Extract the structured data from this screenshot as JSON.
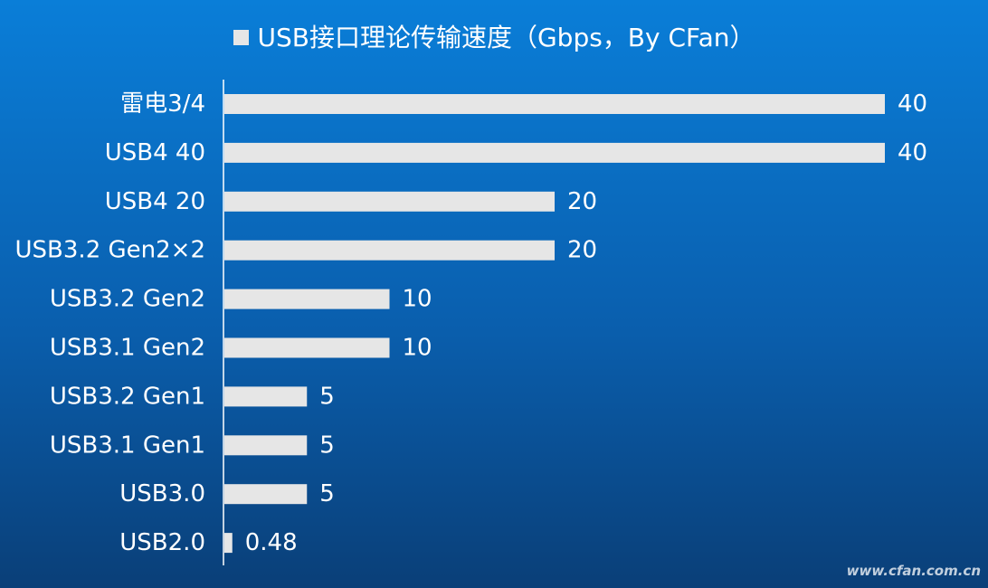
{
  "colors": {
    "bar": "#e6e6e6",
    "axis": "#ffffff",
    "text": "#ffffff"
  },
  "watermark": "www.cfan.com.cn",
  "chart_data": {
    "type": "bar",
    "orientation": "horizontal",
    "title": "",
    "legend": {
      "position": "top",
      "entries": [
        "USB接口理论传输速度（Gbps，By CFan）"
      ]
    },
    "series": [
      {
        "name": "USB接口理论传输速度（Gbps，By CFan）",
        "values": [
          40,
          40,
          20,
          20,
          10,
          10,
          5,
          5,
          5,
          0.48
        ]
      }
    ],
    "categories": [
      "雷电3/4",
      "USB4 40",
      "USB4 20",
      "USB3.2 Gen2×2",
      "USB3.2 Gen2",
      "USB3.1 Gen2",
      "USB3.2 Gen1",
      "USB3.1 Gen1",
      "USB3.0",
      "USB2.0"
    ],
    "data_labels": [
      "40",
      "40",
      "20",
      "20",
      "10",
      "10",
      "5",
      "5",
      "5",
      "0.48"
    ],
    "xlim": [
      0,
      40
    ],
    "grid": false,
    "xlabel": "",
    "ylabel": ""
  }
}
